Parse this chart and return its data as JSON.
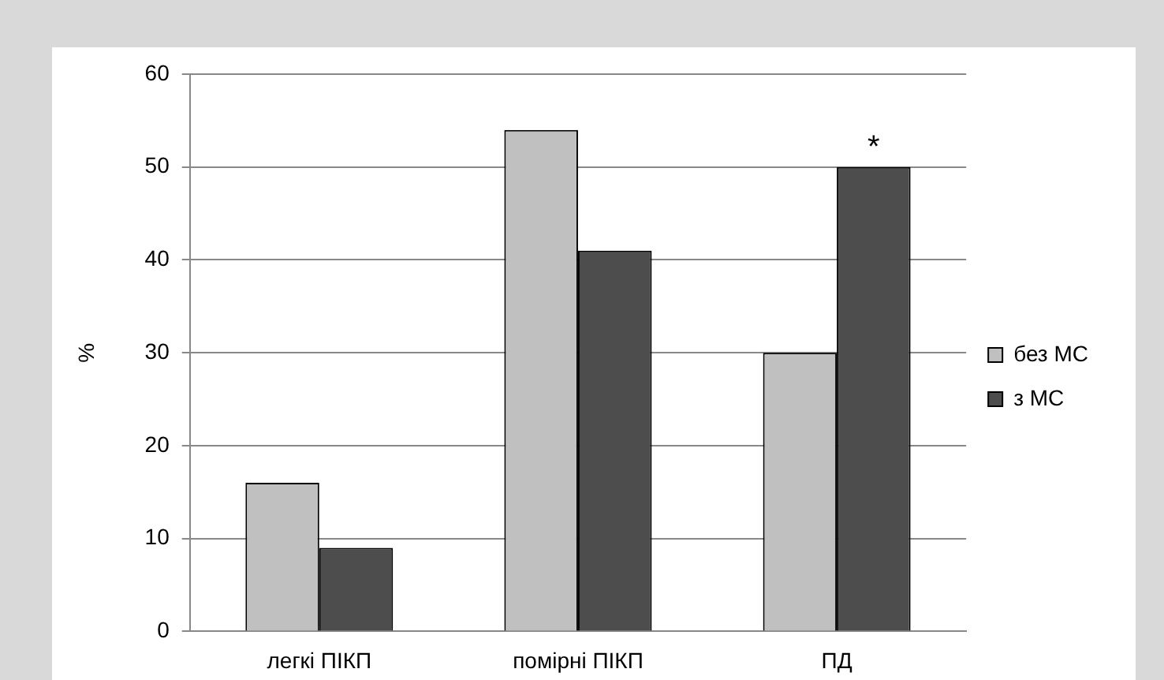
{
  "chart_data": {
    "type": "bar",
    "ylabel": "%",
    "categories": [
      "легкі ПІКП",
      "помірні ПІКП",
      "ПД"
    ],
    "series": [
      {
        "name": "без МС",
        "color": "#c0c0c0",
        "values": [
          16,
          54,
          30
        ]
      },
      {
        "name": "з МС",
        "color": "#4d4d4d",
        "values": [
          9,
          41,
          50
        ]
      }
    ],
    "ylim": [
      0,
      60
    ],
    "yticks": [
      0,
      10,
      20,
      30,
      40,
      50,
      60
    ],
    "grid": "y",
    "legend": "right",
    "annotations": [
      {
        "text": "*",
        "x": "ПД",
        "y": 50
      }
    ]
  }
}
